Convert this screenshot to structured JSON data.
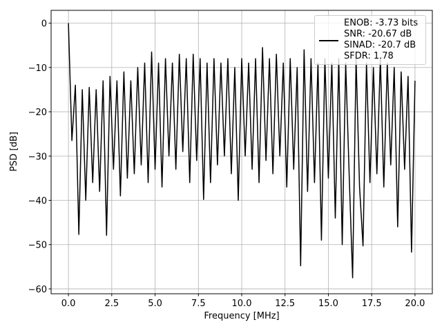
{
  "chart_data": {
    "type": "line",
    "xlabel": "Frequency [MHz]",
    "ylabel": "PSD [dB]",
    "xlim": [
      -1,
      21
    ],
    "ylim": [
      -61.1,
      2.9
    ],
    "xticks": [
      {
        "value": 0,
        "label": "0.0"
      },
      {
        "value": 2.5,
        "label": "2.5"
      },
      {
        "value": 5,
        "label": "5.0"
      },
      {
        "value": 7.5,
        "label": "7.5"
      },
      {
        "value": 10,
        "label": "10.0"
      },
      {
        "value": 12.5,
        "label": "12.5"
      },
      {
        "value": 15,
        "label": "15.0"
      },
      {
        "value": 17.5,
        "label": "17.5"
      },
      {
        "value": 20,
        "label": "20.0"
      }
    ],
    "yticks": [
      {
        "value": 0,
        "label": "0"
      },
      {
        "value": -10,
        "label": "−10"
      },
      {
        "value": -20,
        "label": "−20"
      },
      {
        "value": -30,
        "label": "−30"
      },
      {
        "value": -40,
        "label": "−40"
      },
      {
        "value": -50,
        "label": "−50"
      },
      {
        "value": -60,
        "label": "−60"
      }
    ],
    "grid": true,
    "legend": "upper right",
    "x": [
      0,
      0.2,
      0.4,
      0.6,
      0.8,
      1,
      1.2,
      1.4,
      1.6,
      1.8,
      2,
      2.2,
      2.4,
      2.6,
      2.8,
      3,
      3.2,
      3.4,
      3.6,
      3.8,
      4,
      4.2,
      4.4,
      4.6,
      4.8,
      5,
      5.2,
      5.4,
      5.6,
      5.8,
      6,
      6.2,
      6.4,
      6.6,
      6.8,
      7,
      7.2,
      7.4,
      7.6,
      7.8,
      8,
      8.2,
      8.4,
      8.6,
      8.8,
      9,
      9.2,
      9.4,
      9.6,
      9.8,
      10,
      10.2,
      10.4,
      10.6,
      10.8,
      11,
      11.2,
      11.4,
      11.6,
      11.8,
      12,
      12.2,
      12.4,
      12.6,
      12.8,
      13,
      13.2,
      13.4,
      13.6,
      13.8,
      14,
      14.2,
      14.4,
      14.6,
      14.8,
      15,
      15.2,
      15.4,
      15.6,
      15.8,
      16,
      16.2,
      16.4,
      16.6,
      16.8,
      17,
      17.2,
      17.4,
      17.6,
      17.8,
      18,
      18.2,
      18.4,
      18.6,
      18.8,
      19,
      19.2,
      19.4,
      19.6,
      19.8,
      20
    ],
    "series": [
      {
        "name": "ENOB: -3.73 bits\nSNR: -20.67 dB\nSINAD: -20.7 dB\nSFDR: 1.78",
        "color": "#000000",
        "values": [
          0,
          -26.5,
          -14,
          -47.7,
          -15,
          -40,
          -14.5,
          -36,
          -15,
          -38,
          -13,
          -47.9,
          -12,
          -33,
          -13,
          -39,
          -11,
          -35,
          -13,
          -34,
          -10,
          -32,
          -9,
          -36,
          -6.5,
          -33,
          -9,
          -37,
          -8,
          -30,
          -9,
          -33,
          -7,
          -29,
          -8,
          -36,
          -7,
          -31,
          -8,
          -39.8,
          -9,
          -36,
          -8,
          -32,
          -9,
          -30,
          -8,
          -34,
          -10,
          -40,
          -8,
          -30,
          -9,
          -33,
          -8,
          -36,
          -5.5,
          -31,
          -8,
          -34,
          -7,
          -30,
          -9,
          -37,
          -8,
          -33,
          -10,
          -54.8,
          -6,
          -38,
          -8,
          -36,
          -9,
          -49,
          -8,
          -35,
          -9,
          -44,
          -8,
          -50,
          -9,
          -34,
          -57.5,
          -8,
          -37,
          -50.3,
          -9,
          -36,
          -10,
          -34,
          -8,
          -37,
          -9,
          -32,
          -10,
          -46,
          -11,
          -33,
          -12,
          -51.7,
          -13
        ]
      }
    ]
  }
}
